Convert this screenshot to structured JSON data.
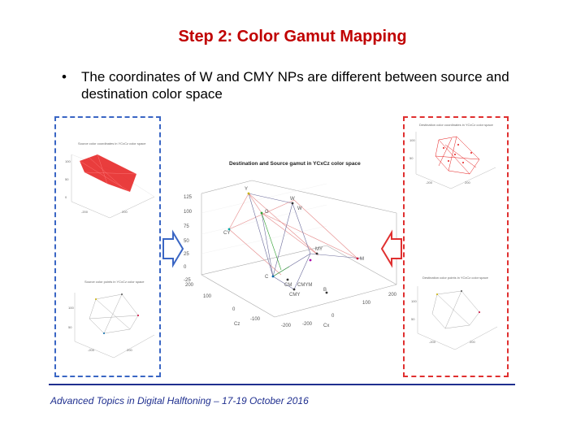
{
  "slide": {
    "title": "Step 2: Color Gamut Mapping",
    "bullet": "The coordinates of W and CMY NPs are different between source and destination color space",
    "footer": "Advanced Topics in Digital Halftoning – 17-19 October 2016"
  },
  "figures": {
    "center_title": "Destination and Source gamut in YCxCz color space",
    "center_axis_ticks": [
      "125",
      "100",
      "75",
      "50",
      "25",
      "0",
      "-25"
    ],
    "center_axis_labels": [
      "Cz",
      "Cx"
    ],
    "center_x_ticks": [
      "200",
      "100",
      "0",
      "-100",
      "-200",
      "-200",
      "0",
      "100",
      "200"
    ],
    "center_point_labels": [
      "Y",
      "W",
      "G",
      "CY",
      "W",
      "MY",
      "M",
      "C",
      "CM",
      "CMY",
      "B",
      "CMYM"
    ],
    "left_top_title": "Source color coordinates in YCxCz color space",
    "left_bottom_title": "Source color points in YCxCz color space",
    "right_top_title": "Destination color coordinates in YCxCz color space",
    "right_bottom_title": "Destination color points in YCxCz color space"
  }
}
